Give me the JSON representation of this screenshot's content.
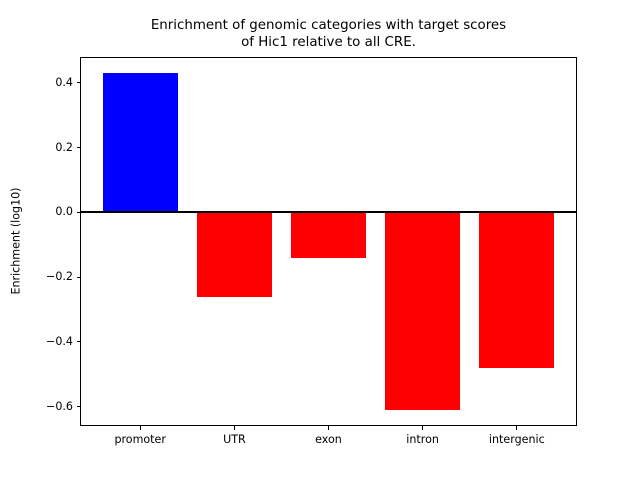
{
  "chart_data": {
    "type": "bar",
    "title": "Enrichment of genomic categories with target scores\nof Hic1 relative to all CRE.",
    "xlabel": "",
    "ylabel": "Enrichment (log10)",
    "categories": [
      "promoter",
      "UTR",
      "exon",
      "intron",
      "intergenic"
    ],
    "values": [
      0.43,
      -0.26,
      -0.14,
      -0.61,
      -0.48
    ],
    "bar_colors": [
      "#0000ff",
      "#ff0000",
      "#ff0000",
      "#ff0000",
      "#ff0000"
    ],
    "colors": {
      "positive": "#0000ff",
      "negative": "#ff0000"
    },
    "bar_width": 0.8,
    "ylim": [
      -0.66,
      0.48
    ],
    "xlim": [
      -0.64,
      4.64
    ],
    "yticks": [
      0.4,
      0.2,
      0.0,
      -0.2,
      -0.4,
      -0.6
    ],
    "ytick_labels": [
      "0.4",
      "0.2",
      "0.0",
      "−0.2",
      "−0.4",
      "−0.6"
    ],
    "grid": false,
    "legend": false,
    "zero_line_color": "#000000",
    "spine_color": "#000000",
    "background_color": "#ffffff"
  }
}
